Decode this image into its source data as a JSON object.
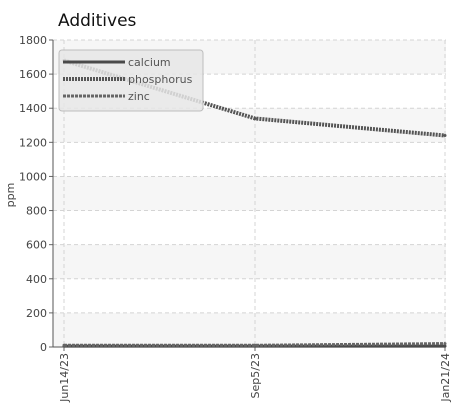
{
  "chart_data": {
    "type": "line",
    "title": "Additives",
    "xlabel": "",
    "ylabel": "ppm",
    "x": [
      "Jun14/23",
      "Sep5/23",
      "Jan21/24"
    ],
    "categories": [
      "Jun14/23",
      "Sep5/23",
      "Jan21/24"
    ],
    "ylim": [
      0,
      1800
    ],
    "yticks": [
      0,
      200,
      400,
      600,
      800,
      1000,
      1200,
      1400,
      1600,
      1800
    ],
    "grid": true,
    "legend_position": "top-left",
    "series": [
      {
        "name": "calcium",
        "values": [
          5,
          5,
          5
        ],
        "color": "#4a4a4a",
        "style": "solid"
      },
      {
        "name": "phosphorus",
        "values": [
          1680,
          1340,
          1240
        ],
        "color": "#555555",
        "style": "dotted"
      },
      {
        "name": "zinc",
        "values": [
          10,
          10,
          20
        ],
        "color": "#666666",
        "style": "dashed"
      }
    ]
  }
}
